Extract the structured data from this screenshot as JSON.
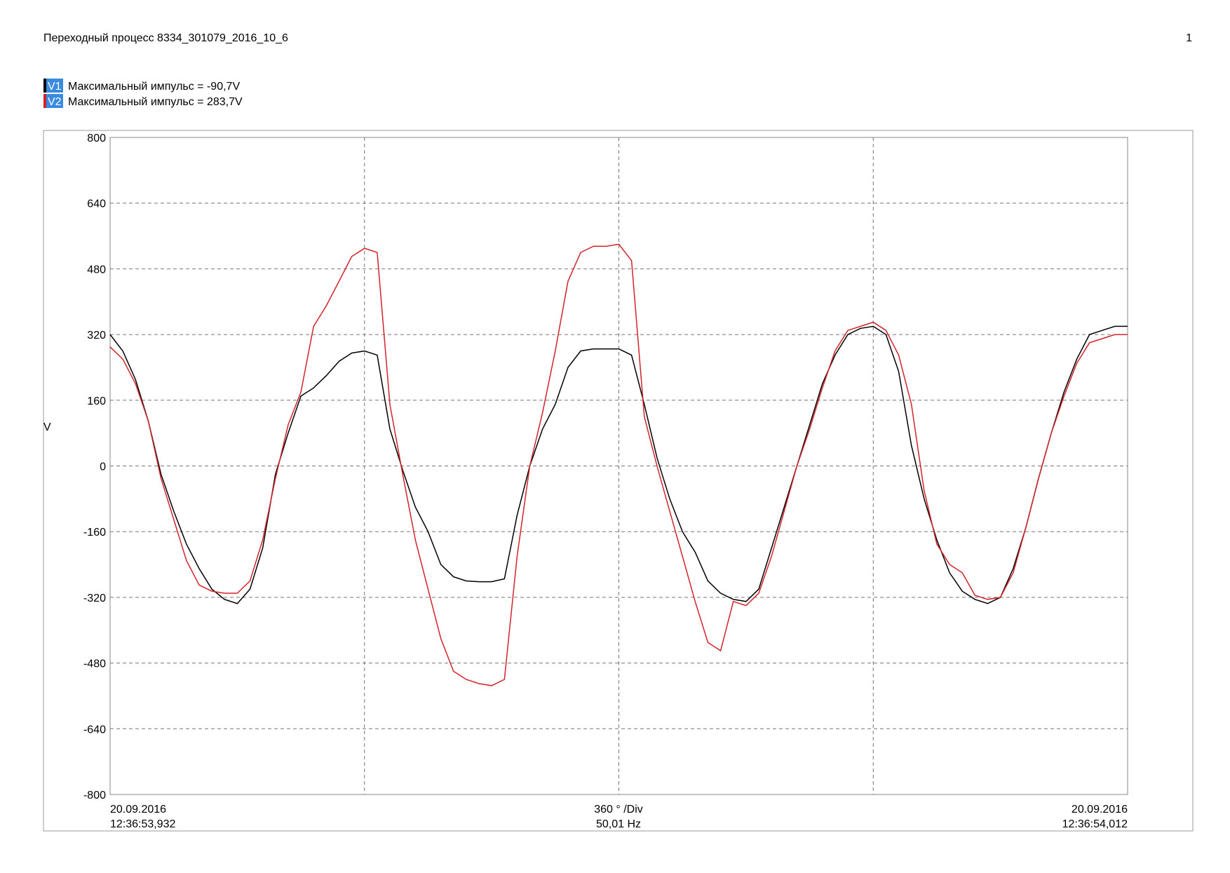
{
  "chart_data": {
    "type": "line",
    "title": "Переходный процесс 8334_301079_2016_10_6",
    "page_number": "1",
    "y_label": "V",
    "ylim": [
      -800,
      800
    ],
    "yticks": [
      -800,
      -640,
      -480,
      -320,
      -160,
      0,
      160,
      320,
      480,
      640,
      800
    ],
    "grid": true,
    "x_start_date": "20.09.2016",
    "x_start_time": "12:36:53,932",
    "x_scale": "360 ° /Div",
    "x_frequency": "50,01 Hz",
    "x_end_date": "20.09.2016",
    "x_end_time": "12:36:54,012",
    "categories": [
      null,
      null,
      null,
      null,
      null,
      null,
      null,
      null,
      null,
      null,
      null,
      null,
      null,
      null,
      null,
      null,
      null,
      null,
      null,
      null,
      null,
      null,
      null,
      null,
      null,
      null,
      null,
      null,
      null,
      null,
      null,
      null,
      null,
      null,
      null,
      null,
      null,
      null,
      null,
      null,
      null,
      null,
      null,
      null,
      null,
      null,
      null,
      null,
      null,
      null,
      null,
      null,
      null,
      null,
      null,
      null,
      null,
      null,
      null,
      null,
      null,
      null,
      null,
      null,
      null,
      null,
      null,
      null,
      null,
      null,
      null,
      null,
      null,
      null,
      null,
      null,
      null,
      null,
      null,
      null,
      null
    ],
    "series": [
      {
        "name": "V1",
        "label": "Максимальный импульс = -90,7V",
        "color": "#000000",
        "values": [
          320,
          280,
          210,
          110,
          -20,
          -110,
          -190,
          -250,
          -300,
          -325,
          -335,
          -300,
          -200,
          -20,
          80,
          170,
          190,
          220,
          255,
          275,
          280,
          270,
          90,
          -10,
          -100,
          -160,
          -240,
          -270,
          -280,
          -282,
          -282,
          -275,
          -120,
          0,
          90,
          150,
          240,
          280,
          285,
          285,
          285,
          270,
          150,
          20,
          -80,
          -160,
          -210,
          -280,
          -310,
          -325,
          -330,
          -300,
          -200,
          -100,
          0,
          100,
          200,
          270,
          320,
          335,
          340,
          320,
          230,
          50,
          -80,
          -180,
          -260,
          -305,
          -325,
          -335,
          -320,
          -250,
          -150,
          -30,
          80,
          180,
          260,
          320,
          330,
          340,
          340
        ]
      },
      {
        "name": "V2",
        "label": "Максимальный импульс = 283,7V",
        "color": "#d2232a",
        "values": [
          290,
          260,
          200,
          110,
          -30,
          -130,
          -230,
          -290,
          -305,
          -310,
          -310,
          -280,
          -180,
          -30,
          100,
          180,
          340,
          390,
          450,
          510,
          530,
          520,
          150,
          -20,
          -180,
          -300,
          -420,
          -500,
          -520,
          -530,
          -535,
          -520,
          -220,
          0,
          130,
          280,
          450,
          520,
          535,
          535,
          540,
          500,
          120,
          0,
          -110,
          -220,
          -330,
          -430,
          -450,
          -330,
          -340,
          -310,
          -220,
          -110,
          0,
          90,
          190,
          280,
          330,
          340,
          350,
          330,
          270,
          150,
          -60,
          -190,
          -240,
          -260,
          -315,
          -325,
          -320,
          -260,
          -150,
          -30,
          80,
          170,
          250,
          300,
          310,
          320,
          320
        ]
      }
    ]
  }
}
